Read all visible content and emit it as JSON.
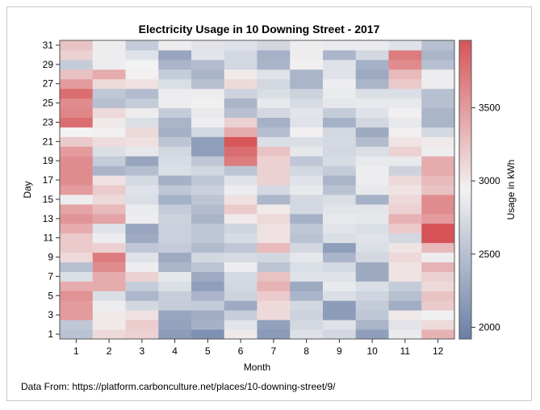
{
  "chart_data": {
    "type": "heatmap",
    "title": "Electricity Usage in 10 Downing Street - 2017",
    "xlabel": "Month",
    "ylabel": "Day",
    "x": [
      1,
      2,
      3,
      4,
      5,
      6,
      7,
      8,
      9,
      10,
      11,
      12
    ],
    "y_ticks": [
      1,
      3,
      5,
      7,
      9,
      11,
      13,
      15,
      17,
      19,
      21,
      23,
      25,
      27,
      29,
      31
    ],
    "colorbar": {
      "label": "Usage in kWh",
      "range": [
        1920,
        3960
      ],
      "ticks": [
        2000,
        2500,
        3000,
        3500
      ],
      "colors": {
        "low": "#6a7fa6",
        "mid": "#f2f2f2",
        "high": "#d65458"
      }
    },
    "values": [
      [
        2520,
        3100,
        3150,
        2180,
        2080,
        3000,
        2160,
        2780,
        2700,
        2200,
        2880,
        3350
      ],
      [
        2560,
        3000,
        3180,
        2240,
        2360,
        2820,
        2220,
        2700,
        2800,
        2400,
        2820,
        3100
      ],
      [
        3500,
        3000,
        3050,
        2260,
        2320,
        2620,
        3100,
        2660,
        2180,
        2560,
        3000,
        2920
      ],
      [
        3500,
        2900,
        2700,
        2600,
        2600,
        2300,
        3100,
        2700,
        2180,
        2600,
        2340,
        3200
      ],
      [
        3560,
        2760,
        2420,
        2620,
        2400,
        2660,
        3200,
        2400,
        2760,
        2680,
        2500,
        3250
      ],
      [
        3400,
        3400,
        2600,
        2760,
        2200,
        2700,
        3350,
        2300,
        2860,
        2760,
        2600,
        3100
      ],
      [
        2760,
        3400,
        3150,
        2840,
        2300,
        2720,
        3250,
        2800,
        2800,
        2300,
        3040,
        3150
      ],
      [
        2500,
        3600,
        2900,
        2400,
        2540,
        2900,
        2540,
        2760,
        2720,
        2300,
        3040,
        3350
      ],
      [
        3100,
        3700,
        2800,
        2300,
        2700,
        2740,
        2700,
        2840,
        2400,
        2700,
        3100,
        2900
      ],
      [
        3200,
        3160,
        2560,
        2600,
        2460,
        2560,
        3300,
        2700,
        2200,
        2760,
        3040,
        3300
      ],
      [
        3200,
        2900,
        2300,
        2640,
        2560,
        2740,
        3050,
        2520,
        2760,
        2800,
        2700,
        3960
      ],
      [
        3400,
        2800,
        2260,
        2640,
        2560,
        2680,
        3050,
        2560,
        2820,
        2760,
        3200,
        3960
      ],
      [
        3550,
        3450,
        2900,
        2660,
        2400,
        3000,
        3100,
        2360,
        2860,
        2840,
        3350,
        3500
      ],
      [
        3450,
        3300,
        2880,
        2600,
        2460,
        3200,
        3000,
        2700,
        2820,
        2820,
        3150,
        3600
      ],
      [
        2900,
        3100,
        2760,
        2360,
        2540,
        3050,
        2420,
        2700,
        2760,
        2360,
        3100,
        3600
      ],
      [
        3500,
        3200,
        2800,
        2560,
        2640,
        2900,
        2720,
        2860,
        2520,
        2860,
        3040,
        3250
      ],
      [
        3600,
        3050,
        2720,
        2360,
        2560,
        2800,
        3150,
        2800,
        2400,
        2900,
        3100,
        3300
      ],
      [
        3600,
        2400,
        2480,
        2760,
        2700,
        2540,
        3150,
        2700,
        2600,
        2900,
        2660,
        3400
      ],
      [
        3600,
        2600,
        2260,
        2740,
        2560,
        3700,
        3150,
        2560,
        2740,
        2860,
        2860,
        3400
      ],
      [
        3500,
        2760,
        2840,
        2700,
        2200,
        3800,
        3250,
        2840,
        2700,
        2760,
        3150,
        2900
      ],
      [
        3200,
        3080,
        3050,
        2540,
        2200,
        3950,
        2760,
        2760,
        2720,
        2460,
        3040,
        3000
      ],
      [
        2940,
        2960,
        3100,
        2360,
        2700,
        3400,
        2480,
        2960,
        2700,
        2300,
        2960,
        2700
      ],
      [
        3800,
        3000,
        2760,
        2400,
        2900,
        3150,
        2360,
        2800,
        2360,
        2700,
        2860,
        2400
      ],
      [
        3640,
        3100,
        2900,
        2600,
        2860,
        2500,
        2700,
        2820,
        2600,
        2800,
        2960,
        2400
      ],
      [
        3600,
        2500,
        2600,
        2900,
        2960,
        2400,
        2860,
        2740,
        2840,
        2860,
        2860,
        2500
      ],
      [
        3800,
        2560,
        2460,
        2900,
        2900,
        2660,
        2760,
        2660,
        2880,
        2760,
        2760,
        2500
      ],
      [
        3500,
        3100,
        3050,
        2760,
        2500,
        3100,
        2700,
        2400,
        2900,
        2400,
        3200,
        2900
      ],
      [
        3250,
        3400,
        2960,
        2600,
        2400,
        3000,
        2800,
        2400,
        2800,
        2300,
        3300,
        2900
      ],
      [
        2600,
        2900,
        2940,
        2400,
        2460,
        2700,
        2400,
        2960,
        2800,
        2360,
        3600,
        2500
      ],
      [
        3150,
        2900,
        2800,
        2260,
        2820,
        2700,
        2360,
        2900,
        2400,
        2700,
        3700,
        2400
      ],
      [
        3250,
        2900,
        2600,
        2900,
        2820,
        2800,
        2700,
        2900,
        2880,
        2880,
        2800,
        2500
      ]
    ],
    "footnote": "Data From: https://platform.carbonculture.net/places/10-downing-street/9/"
  }
}
